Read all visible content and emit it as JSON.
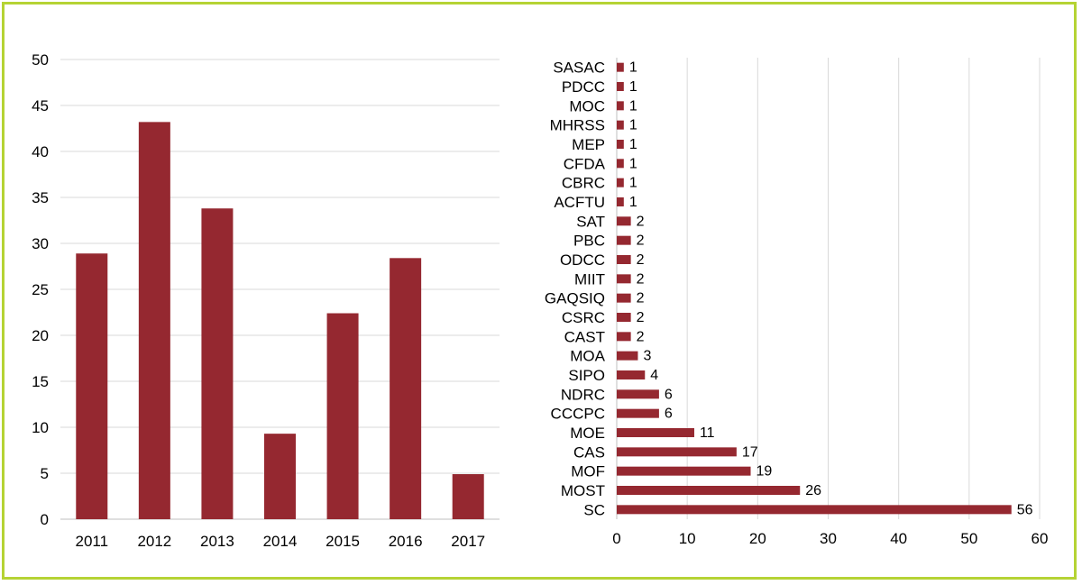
{
  "colors": {
    "bar": "#952830",
    "grid": "#d9d9d9",
    "axis": "#bfbfbf",
    "border": "#b5d334"
  },
  "chart_data": [
    {
      "type": "bar",
      "categories": [
        "2011",
        "2012",
        "2013",
        "2014",
        "2015",
        "2016",
        "2017"
      ],
      "values": [
        28.9,
        43.2,
        33.8,
        9.3,
        22.4,
        28.4,
        4.9
      ],
      "ylim": [
        0,
        50
      ],
      "yticks": [
        "0",
        "5",
        "10",
        "15",
        "20",
        "25",
        "30",
        "35",
        "40",
        "45",
        "50"
      ],
      "title": "",
      "xlabel": "",
      "ylabel": "",
      "grid": true
    },
    {
      "type": "bar",
      "orientation": "horizontal",
      "categories": [
        "SASAC",
        "PDCC",
        "MOC",
        "MHRSS",
        "MEP",
        "CFDA",
        "CBRC",
        "ACFTU",
        "SAT",
        "PBC",
        "ODCC",
        "MIIT",
        "GAQSIQ",
        "CSRC",
        "CAST",
        "MOA",
        "SIPO",
        "NDRC",
        "CCCPC",
        "MOE",
        "CAS",
        "MOF",
        "MOST",
        "SC"
      ],
      "values": [
        1,
        1,
        1,
        1,
        1,
        1,
        1,
        1,
        2,
        2,
        2,
        2,
        2,
        2,
        2,
        3,
        4,
        6,
        6,
        11,
        17,
        19,
        26,
        56
      ],
      "value_labels": [
        "1",
        "1",
        "1",
        "1",
        "1",
        "1",
        "1",
        "1",
        "2",
        "2",
        "2",
        "2",
        "2",
        "2",
        "2",
        "3",
        "4",
        "6",
        "6",
        "11",
        "17",
        "19",
        "26",
        "56"
      ],
      "xlim": [
        0,
        60
      ],
      "xticks": [
        "0",
        "10",
        "20",
        "30",
        "40",
        "50",
        "60"
      ],
      "title": "",
      "xlabel": "",
      "ylabel": "",
      "grid": true
    }
  ]
}
